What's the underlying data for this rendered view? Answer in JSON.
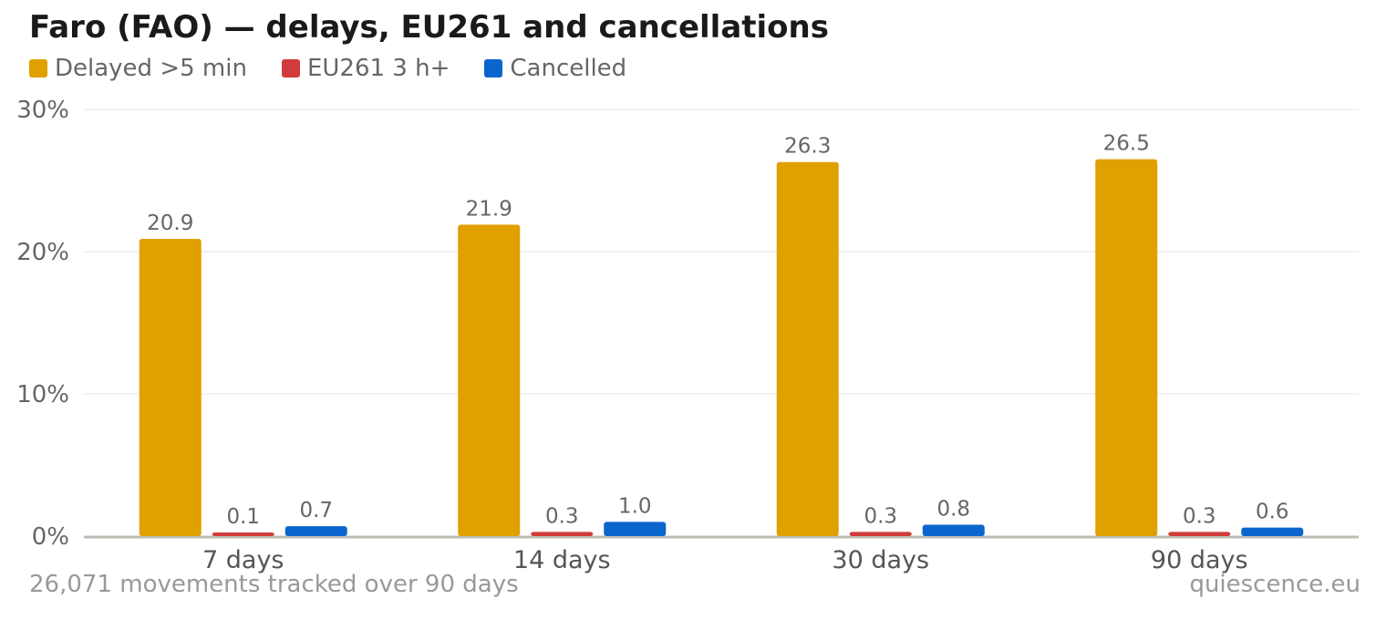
{
  "chart_data": {
    "type": "bar",
    "title": "Faro (FAO) — delays, EU261 and cancellations",
    "categories": [
      "7 days",
      "14 days",
      "30 days",
      "90 days"
    ],
    "series": [
      {
        "name": "Delayed >5 min",
        "color": "#e0a000",
        "values": [
          20.9,
          21.9,
          26.3,
          26.5
        ],
        "labels": [
          "20.9",
          "21.9",
          "26.3",
          "26.5"
        ]
      },
      {
        "name": "EU261 3 h+",
        "color": "#d13b3b",
        "values": [
          0.1,
          0.3,
          0.3,
          0.3
        ],
        "labels": [
          "0.1",
          "0.3",
          "0.3",
          "0.3"
        ]
      },
      {
        "name": "Cancelled",
        "color": "#0a66cc",
        "values": [
          0.7,
          1.0,
          0.8,
          0.6
        ],
        "labels": [
          "0.7",
          "1.0",
          "0.8",
          "0.6"
        ]
      }
    ],
    "ylim": [
      0,
      30
    ],
    "yticks": [
      0,
      10,
      20,
      30
    ],
    "ytick_labels": [
      "0%",
      "10%",
      "20%",
      "30%"
    ],
    "grid": true,
    "legend_position": "top-left"
  },
  "footer": {
    "note": "26,071 movements tracked over 90 days",
    "source": "quiescence.eu"
  }
}
